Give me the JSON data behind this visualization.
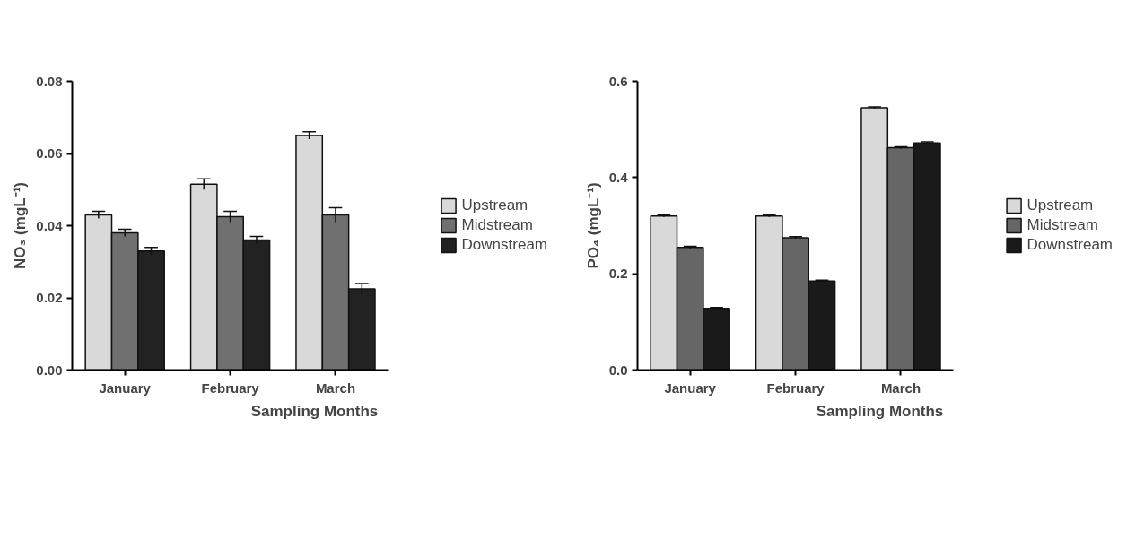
{
  "chart_data": [
    {
      "type": "bar",
      "xlabel": "Sampling Months",
      "ylabel": "NO₃ (mgL⁻¹)",
      "categories": [
        "January",
        "February",
        "March"
      ],
      "series": [
        {
          "name": "Upstream",
          "color": "#d9d9d9",
          "values": [
            0.043,
            0.0515,
            0.065
          ],
          "errors": [
            0.001,
            0.0015,
            0.001
          ]
        },
        {
          "name": "Midstream",
          "color": "#707070",
          "values": [
            0.038,
            0.0425,
            0.043
          ],
          "errors": [
            0.001,
            0.0015,
            0.002
          ]
        },
        {
          "name": "Downstream",
          "color": "#222222",
          "values": [
            0.033,
            0.036,
            0.0225
          ],
          "errors": [
            0.001,
            0.001,
            0.0015
          ]
        }
      ],
      "ylim": [
        0,
        0.08
      ],
      "yticks": [
        {
          "value": 0,
          "label": "0.00"
        },
        0.02,
        0.04,
        0.06,
        0.08
      ],
      "grid": false,
      "legend": "right"
    },
    {
      "type": "bar",
      "xlabel": "Sampling Months",
      "ylabel": "PO₄ (mgL⁻¹)",
      "categories": [
        "January",
        "February",
        "March"
      ],
      "series": [
        {
          "name": "Upstream",
          "color": "#d9d9d9",
          "values": [
            0.32,
            0.32,
            0.545
          ],
          "errors": [
            0.002,
            0.002,
            0.002
          ]
        },
        {
          "name": "Midstream",
          "color": "#666666",
          "values": [
            0.255,
            0.275,
            0.462
          ],
          "errors": [
            0.002,
            0.002,
            0.002
          ]
        },
        {
          "name": "Downstream",
          "color": "#1a1a1a",
          "values": [
            0.128,
            0.185,
            0.472
          ],
          "errors": [
            0.002,
            0.002,
            0.002
          ]
        }
      ],
      "ylim": [
        0,
        0.6
      ],
      "yticks": [
        {
          "value": 0,
          "label": "0.0"
        },
        0.2,
        0.4,
        0.6
      ],
      "grid": false,
      "legend": "right"
    }
  ]
}
